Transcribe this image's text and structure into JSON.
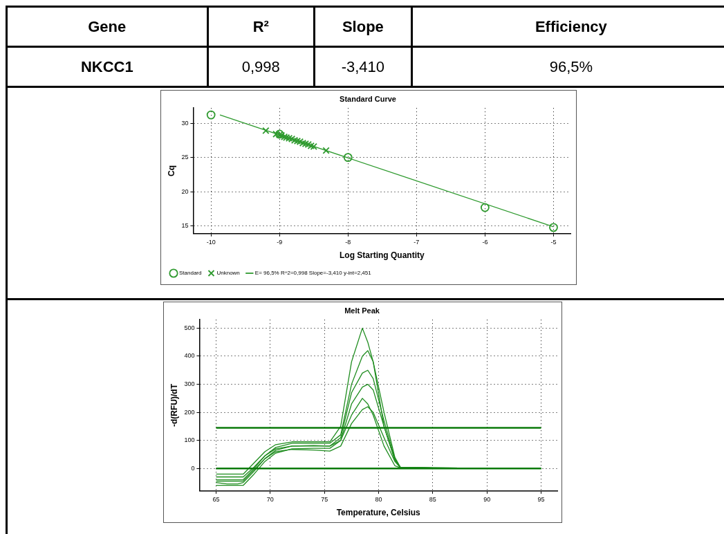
{
  "chart_data": [
    {
      "type": "other",
      "annotations": [
        "Gene",
        "R²",
        "Slope",
        "Efficiency",
        "NKCC1",
        "0,998",
        "-3,410",
        "96,5%"
      ]
    },
    {
      "type": "scatter",
      "title": "Standard Curve",
      "xlabel": "Log Starting Quantity",
      "ylabel": "Cq",
      "xlim": [
        -10.26,
        -4.75
      ],
      "ylim": [
        13.9,
        32.2
      ],
      "xticks": [
        -10,
        -9,
        -8,
        -7,
        -6,
        -5
      ],
      "yticks": [
        15,
        20,
        25,
        30
      ],
      "grid": true,
      "legend": "bottom left",
      "series": [
        {
          "name": "Standard",
          "color": "#2e9a2e",
          "marker": "circle",
          "x": [
            -10,
            -9,
            -8,
            -6,
            -5
          ],
          "values": [
            31.2,
            28.4,
            25.0,
            17.7,
            14.8
          ]
        },
        {
          "name": "Unknown",
          "color": "#2e9a2e",
          "marker": "cross",
          "x": [
            -9.2,
            -9.05,
            -9.0,
            -8.97,
            -8.93,
            -8.9,
            -8.86,
            -8.82,
            -8.78,
            -8.74,
            -8.7,
            -8.66,
            -8.62,
            -8.58,
            -8.54,
            -8.5,
            -8.32
          ],
          "values": [
            28.9,
            28.4,
            28.3,
            28.2,
            28.0,
            27.9,
            27.8,
            27.7,
            27.5,
            27.4,
            27.3,
            27.1,
            27.0,
            26.9,
            26.7,
            26.6,
            26.0
          ]
        },
        {
          "type": "line",
          "name": "E= 96,5% R^2=0,998 Slope=-3,410 y-int=2,451",
          "color": "#2e9a2e",
          "marker": "none",
          "x": [
            -9.87,
            -5
          ],
          "values": [
            31.2,
            14.9
          ]
        }
      ]
    },
    {
      "type": "line",
      "title": "Melt Peak",
      "xlabel": "Temperature, Celsius",
      "ylabel": "-d(RFU)/dT",
      "xlim": [
        63.46,
        96.5
      ],
      "ylim": [
        -80,
        530
      ],
      "xticks": [
        65,
        70,
        75,
        80,
        85,
        90,
        95
      ],
      "yticks": [
        0,
        100,
        200,
        300,
        400,
        500
      ],
      "grid": true,
      "marker": "none",
      "x": [
        65,
        66,
        67,
        67.5,
        68.5,
        69.5,
        70.5,
        72,
        74,
        75.5,
        76.5,
        77.5,
        78.5,
        79,
        79.5,
        80.5,
        81.5,
        82,
        85,
        90,
        95
      ],
      "series": [
        {
          "color": "#1e8c1e",
          "values": [
            -20,
            -20,
            -20,
            -20,
            20,
            60,
            85,
            95,
            95,
            95,
            150,
            380,
            500,
            450,
            380,
            150,
            30,
            5,
            2,
            1,
            0
          ]
        },
        {
          "color": "#1e8c1e",
          "values": [
            -40,
            -40,
            -40,
            -40,
            0,
            45,
            75,
            90,
            90,
            90,
            120,
            300,
            400,
            420,
            380,
            200,
            40,
            5,
            2,
            1,
            0
          ]
        },
        {
          "color": "#1e8c1e",
          "values": [
            -50,
            -55,
            -55,
            -50,
            -10,
            35,
            65,
            80,
            82,
            80,
            110,
            270,
            340,
            350,
            320,
            170,
            35,
            5,
            2,
            1,
            0
          ]
        },
        {
          "color": "#1e8c1e",
          "values": [
            -60,
            -60,
            -60,
            -60,
            -20,
            25,
            55,
            70,
            72,
            72,
            100,
            230,
            290,
            300,
            280,
            150,
            30,
            5,
            2,
            1,
            0
          ]
        },
        {
          "color": "#1e8c1e",
          "values": [
            -30,
            -30,
            -30,
            -30,
            5,
            45,
            70,
            80,
            80,
            80,
            100,
            190,
            250,
            230,
            190,
            80,
            10,
            3,
            1,
            1,
            0
          ]
        },
        {
          "color": "#1e8c1e",
          "values": [
            -45,
            -45,
            -45,
            -45,
            -5,
            35,
            60,
            68,
            66,
            62,
            80,
            160,
            210,
            220,
            200,
            110,
            25,
            3,
            1,
            1,
            0
          ]
        }
      ],
      "ref_lines": [
        {
          "axis": "y",
          "value": 145,
          "color": "#0a7a0a"
        },
        {
          "axis": "y",
          "value": 0,
          "color": "#0a7a0a"
        }
      ]
    }
  ]
}
